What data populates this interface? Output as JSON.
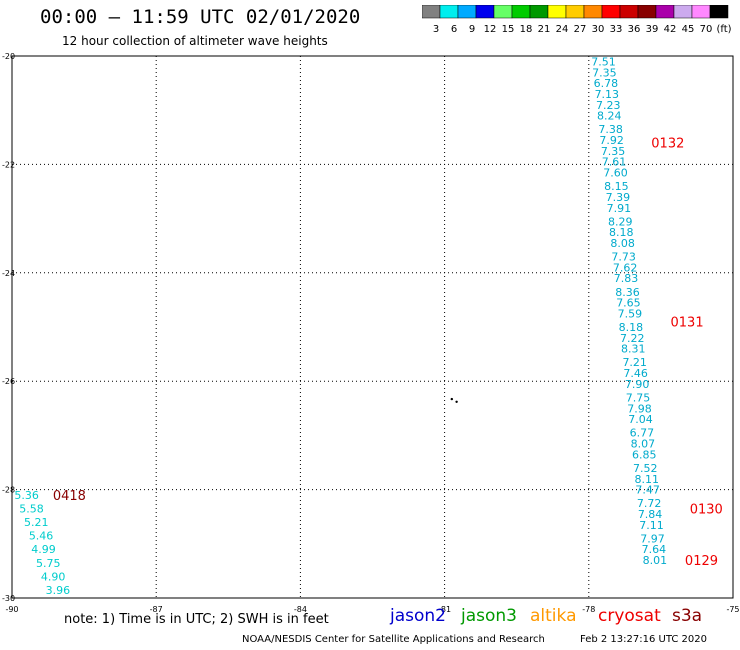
{
  "title": "00:00 – 11:59 UTC 02/01/2020",
  "subtitle": "12 hour collection of altimeter wave heights",
  "note": "note: 1) Time is in UTC; 2) SWH is in feet",
  "credit": "NOAA/NESDIS Center for Satellite Applications and Research",
  "credit_date": "Feb  2 13:27:16 UTC 2020",
  "satellites": [
    {
      "name": "jason2",
      "color": "#0000cc"
    },
    {
      "name": "jason3",
      "color": "#009900"
    },
    {
      "name": "altika",
      "color": "#ff9900"
    },
    {
      "name": "cryosat",
      "color": "#ee0000"
    },
    {
      "name": "s3a",
      "color": "#880000"
    }
  ],
  "colorbar": {
    "colors": [
      "#808080",
      "#00eeee",
      "#00aaff",
      "#0000ee",
      "#66ff66",
      "#00cc00",
      "#009900",
      "#ffff00",
      "#ffcc00",
      "#ff8800",
      "#ff0000",
      "#cc0000",
      "#880000",
      "#aa00aa",
      "#ccaaee",
      "#ff88ff",
      "#000000"
    ],
    "labels": [
      "3",
      "6",
      "9",
      "12",
      "15",
      "18",
      "21",
      "24",
      "27",
      "30",
      "33",
      "36",
      "39",
      "42",
      "45",
      "70",
      "(ft)"
    ]
  },
  "chart_data": {
    "type": "scatter",
    "xlim": [
      -90,
      -75
    ],
    "ylim": [
      -30,
      -20
    ],
    "x_ticks": [
      -90,
      -87,
      -84,
      -81,
      -78,
      -75
    ],
    "y_ticks": [
      -20,
      -22,
      -24,
      -26,
      -28,
      -30
    ],
    "x_tick_labels": [
      "-90",
      "-87",
      "-84",
      "-81",
      "-78",
      "-75"
    ],
    "y_tick_labels": [
      "-20",
      "-22",
      "-24",
      "-26",
      "-28",
      "-30"
    ],
    "grid": true,
    "series": [
      {
        "name": "cryosat",
        "color": "#00aacc",
        "points": [
          {
            "lon": -77.95,
            "lat": -20.1,
            "v": "7.51"
          },
          {
            "lon": -77.93,
            "lat": -20.3,
            "v": "7.35"
          },
          {
            "lon": -77.9,
            "lat": -20.5,
            "v": "6.78"
          },
          {
            "lon": -77.88,
            "lat": -20.7,
            "v": "7.13"
          },
          {
            "lon": -77.85,
            "lat": -20.9,
            "v": "7.23"
          },
          {
            "lon": -77.83,
            "lat": -21.1,
            "v": "8.24"
          },
          {
            "lon": -77.8,
            "lat": -21.35,
            "v": "7.38"
          },
          {
            "lon": -77.78,
            "lat": -21.55,
            "v": "7.92"
          },
          {
            "lon": -77.75,
            "lat": -21.75,
            "v": "7.35"
          },
          {
            "lon": -77.73,
            "lat": -21.95,
            "v": "7.61"
          },
          {
            "lon": -77.7,
            "lat": -22.15,
            "v": "7.60"
          },
          {
            "lon": -77.68,
            "lat": -22.4,
            "v": "8.15"
          },
          {
            "lon": -77.65,
            "lat": -22.6,
            "v": "7.39"
          },
          {
            "lon": -77.63,
            "lat": -22.8,
            "v": "7.91"
          },
          {
            "lon": -77.6,
            "lat": -23.05,
            "v": "8.29"
          },
          {
            "lon": -77.58,
            "lat": -23.25,
            "v": "8.18"
          },
          {
            "lon": -77.55,
            "lat": -23.45,
            "v": "8.08"
          },
          {
            "lon": -77.53,
            "lat": -23.7,
            "v": "7.73"
          },
          {
            "lon": -77.5,
            "lat": -23.9,
            "v": "7.62"
          },
          {
            "lon": -77.48,
            "lat": -24.1,
            "v": "7.83"
          },
          {
            "lon": -77.45,
            "lat": -24.35,
            "v": "8.36"
          },
          {
            "lon": -77.43,
            "lat": -24.55,
            "v": "7.65"
          },
          {
            "lon": -77.4,
            "lat": -24.75,
            "v": "7.59"
          },
          {
            "lon": -77.38,
            "lat": -25.0,
            "v": "8.18"
          },
          {
            "lon": -77.35,
            "lat": -25.2,
            "v": "7.22"
          },
          {
            "lon": -77.33,
            "lat": -25.4,
            "v": "8.31"
          },
          {
            "lon": -77.3,
            "lat": -25.65,
            "v": "7.21"
          },
          {
            "lon": -77.28,
            "lat": -25.85,
            "v": "7.46"
          },
          {
            "lon": -77.25,
            "lat": -26.05,
            "v": "7.90"
          },
          {
            "lon": -77.23,
            "lat": -26.3,
            "v": "7.75"
          },
          {
            "lon": -77.2,
            "lat": -26.5,
            "v": "7.98"
          },
          {
            "lon": -77.18,
            "lat": -26.7,
            "v": "7.04"
          },
          {
            "lon": -77.15,
            "lat": -26.95,
            "v": "6.77"
          },
          {
            "lon": -77.13,
            "lat": -27.15,
            "v": "8.07"
          },
          {
            "lon": -77.1,
            "lat": -27.35,
            "v": "6.85"
          },
          {
            "lon": -77.08,
            "lat": -27.6,
            "v": "7.52"
          },
          {
            "lon": -77.05,
            "lat": -27.8,
            "v": "8.11"
          },
          {
            "lon": -77.03,
            "lat": -28.0,
            "v": "7.47"
          },
          {
            "lon": -77.0,
            "lat": -28.25,
            "v": "7.72"
          },
          {
            "lon": -76.98,
            "lat": -28.45,
            "v": "7.84"
          },
          {
            "lon": -76.95,
            "lat": -28.65,
            "v": "7.11"
          },
          {
            "lon": -76.93,
            "lat": -28.9,
            "v": "7.97"
          },
          {
            "lon": -76.9,
            "lat": -29.1,
            "v": "7.64"
          },
          {
            "lon": -76.88,
            "lat": -29.3,
            "v": "8.01"
          }
        ]
      },
      {
        "name": "s3a",
        "color": "#00cccc",
        "points": [
          {
            "lon": -89.95,
            "lat": -28.1,
            "v": "5.36"
          },
          {
            "lon": -89.85,
            "lat": -28.35,
            "v": "5.58"
          },
          {
            "lon": -89.75,
            "lat": -28.6,
            "v": "5.21"
          },
          {
            "lon": -89.65,
            "lat": -28.85,
            "v": "5.46"
          },
          {
            "lon": -89.6,
            "lat": -29.1,
            "v": "4.99"
          },
          {
            "lon": -89.5,
            "lat": -29.35,
            "v": "5.75"
          },
          {
            "lon": -89.4,
            "lat": -29.6,
            "v": "4.90"
          },
          {
            "lon": -89.3,
            "lat": -29.85,
            "v": "3.96"
          }
        ]
      }
    ],
    "time_labels": [
      {
        "lon": -76.7,
        "lat": -21.6,
        "text": "0132",
        "color": "#ee0000"
      },
      {
        "lon": -76.3,
        "lat": -24.9,
        "text": "0131",
        "color": "#ee0000"
      },
      {
        "lon": -75.9,
        "lat": -28.35,
        "text": "0130",
        "color": "#ee0000"
      },
      {
        "lon": -76.0,
        "lat": -29.3,
        "text": "0129",
        "color": "#ee0000"
      },
      {
        "lon": -89.15,
        "lat": -28.1,
        "text": "0418",
        "color": "#880000"
      }
    ],
    "islands": [
      {
        "lon": -80.85,
        "lat": -26.33
      },
      {
        "lon": -80.75,
        "lat": -26.38
      }
    ]
  }
}
